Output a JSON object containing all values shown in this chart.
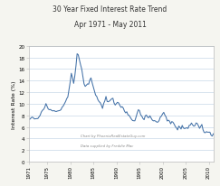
{
  "title_line1": "30 Year Fixed Interest Rate Trend",
  "title_line2": "Apr 1971 - May 2011",
  "ylabel": "Interest Rate (%)",
  "xlim_years": [
    1971,
    2011
  ],
  "ylim": [
    0,
    20
  ],
  "yticks": [
    0,
    2,
    4,
    6,
    8,
    10,
    12,
    14,
    16,
    18,
    20
  ],
  "xticks": [
    1971,
    1975,
    1980,
    1985,
    1990,
    1995,
    2000,
    2005,
    2010
  ],
  "line_color": "#4472a8",
  "background_color": "#f5f5f0",
  "plot_bg_color": "#ffffff",
  "grid_color": "#c8d8e8",
  "annotation1": "Chart by PhoenixRealEstateGuy.com",
  "annotation2": "Data supplied by Freddie Mac",
  "mortgage_rates": [
    [
      1971.25,
      7.33
    ],
    [
      1971.5,
      7.53
    ],
    [
      1971.75,
      7.7
    ],
    [
      1972.0,
      7.6
    ],
    [
      1972.25,
      7.38
    ],
    [
      1972.5,
      7.41
    ],
    [
      1972.75,
      7.44
    ],
    [
      1973.0,
      7.44
    ],
    [
      1973.25,
      7.73
    ],
    [
      1973.5,
      8.02
    ],
    [
      1973.75,
      8.57
    ],
    [
      1974.0,
      8.87
    ],
    [
      1974.25,
      9.04
    ],
    [
      1974.5,
      9.4
    ],
    [
      1974.75,
      10.03
    ],
    [
      1975.0,
      9.57
    ],
    [
      1975.25,
      9.1
    ],
    [
      1975.5,
      8.97
    ],
    [
      1975.75,
      9.01
    ],
    [
      1976.0,
      8.84
    ],
    [
      1976.25,
      8.76
    ],
    [
      1976.5,
      8.83
    ],
    [
      1976.75,
      8.7
    ],
    [
      1977.0,
      8.67
    ],
    [
      1977.25,
      8.75
    ],
    [
      1977.5,
      8.8
    ],
    [
      1977.75,
      8.84
    ],
    [
      1978.0,
      8.97
    ],
    [
      1978.25,
      9.41
    ],
    [
      1978.5,
      9.62
    ],
    [
      1978.75,
      9.99
    ],
    [
      1979.0,
      10.38
    ],
    [
      1979.25,
      10.88
    ],
    [
      1979.5,
      11.2
    ],
    [
      1979.75,
      12.5
    ],
    [
      1980.0,
      13.74
    ],
    [
      1980.25,
      15.26
    ],
    [
      1980.5,
      14.48
    ],
    [
      1980.75,
      13.52
    ],
    [
      1981.0,
      14.8
    ],
    [
      1981.25,
      16.52
    ],
    [
      1981.5,
      18.63
    ],
    [
      1981.75,
      18.45
    ],
    [
      1982.0,
      17.6
    ],
    [
      1982.25,
      16.72
    ],
    [
      1982.5,
      15.98
    ],
    [
      1982.75,
      14.7
    ],
    [
      1983.0,
      13.44
    ],
    [
      1983.25,
      13.0
    ],
    [
      1983.5,
      13.2
    ],
    [
      1983.75,
      13.43
    ],
    [
      1984.0,
      13.38
    ],
    [
      1984.25,
      14.1
    ],
    [
      1984.5,
      14.47
    ],
    [
      1984.75,
      13.64
    ],
    [
      1985.0,
      12.92
    ],
    [
      1985.25,
      12.22
    ],
    [
      1985.5,
      11.5
    ],
    [
      1985.75,
      11.26
    ],
    [
      1986.0,
      10.7
    ],
    [
      1986.25,
      10.37
    ],
    [
      1986.5,
      10.2
    ],
    [
      1986.75,
      9.77
    ],
    [
      1987.0,
      9.2
    ],
    [
      1987.25,
      10.05
    ],
    [
      1987.5,
      10.5
    ],
    [
      1987.75,
      11.26
    ],
    [
      1988.0,
      10.4
    ],
    [
      1988.25,
      10.35
    ],
    [
      1988.5,
      10.47
    ],
    [
      1988.75,
      10.67
    ],
    [
      1989.0,
      10.87
    ],
    [
      1989.25,
      10.95
    ],
    [
      1989.5,
      10.12
    ],
    [
      1989.75,
      9.78
    ],
    [
      1990.0,
      10.05
    ],
    [
      1990.25,
      10.25
    ],
    [
      1990.5,
      10.13
    ],
    [
      1990.75,
      9.72
    ],
    [
      1991.0,
      9.38
    ],
    [
      1991.25,
      9.5
    ],
    [
      1991.5,
      9.25
    ],
    [
      1991.75,
      8.73
    ],
    [
      1992.0,
      8.43
    ],
    [
      1992.25,
      8.62
    ],
    [
      1992.5,
      8.1
    ],
    [
      1992.75,
      8.0
    ],
    [
      1993.0,
      7.68
    ],
    [
      1993.25,
      7.35
    ],
    [
      1993.5,
      7.11
    ],
    [
      1993.75,
      7.07
    ],
    [
      1994.0,
      7.06
    ],
    [
      1994.25,
      7.68
    ],
    [
      1994.5,
      8.38
    ],
    [
      1994.75,
      8.97
    ],
    [
      1995.0,
      8.83
    ],
    [
      1995.25,
      8.11
    ],
    [
      1995.5,
      7.87
    ],
    [
      1995.75,
      7.47
    ],
    [
      1996.0,
      7.25
    ],
    [
      1996.25,
      7.93
    ],
    [
      1996.5,
      8.05
    ],
    [
      1996.75,
      7.68
    ],
    [
      1997.0,
      7.59
    ],
    [
      1997.25,
      7.93
    ],
    [
      1997.5,
      7.57
    ],
    [
      1997.75,
      7.21
    ],
    [
      1998.0,
      7.05
    ],
    [
      1998.25,
      7.1
    ],
    [
      1998.5,
      6.99
    ],
    [
      1998.75,
      6.83
    ],
    [
      1999.0,
      6.84
    ],
    [
      1999.25,
      7.1
    ],
    [
      1999.5,
      7.69
    ],
    [
      1999.75,
      7.87
    ],
    [
      2000.0,
      8.25
    ],
    [
      2000.25,
      8.52
    ],
    [
      2000.5,
      8.04
    ],
    [
      2000.75,
      7.73
    ],
    [
      2001.0,
      7.03
    ],
    [
      2001.25,
      7.17
    ],
    [
      2001.5,
      7.0
    ],
    [
      2001.75,
      6.54
    ],
    [
      2002.0,
      6.93
    ],
    [
      2002.25,
      6.81
    ],
    [
      2002.5,
      6.49
    ],
    [
      2002.75,
      6.08
    ],
    [
      2003.0,
      5.84
    ],
    [
      2003.25,
      5.48
    ],
    [
      2003.5,
      6.14
    ],
    [
      2003.75,
      5.95
    ],
    [
      2004.0,
      5.64
    ],
    [
      2004.25,
      6.27
    ],
    [
      2004.5,
      5.82
    ],
    [
      2004.75,
      5.71
    ],
    [
      2005.0,
      5.79
    ],
    [
      2005.25,
      5.86
    ],
    [
      2005.5,
      5.73
    ],
    [
      2005.75,
      6.26
    ],
    [
      2006.0,
      6.32
    ],
    [
      2006.25,
      6.68
    ],
    [
      2006.5,
      6.35
    ],
    [
      2006.75,
      6.14
    ],
    [
      2007.0,
      6.22
    ],
    [
      2007.25,
      6.69
    ],
    [
      2007.5,
      6.59
    ],
    [
      2007.75,
      6.21
    ],
    [
      2008.0,
      5.76
    ],
    [
      2008.25,
      6.09
    ],
    [
      2008.5,
      6.43
    ],
    [
      2008.75,
      5.53
    ],
    [
      2009.0,
      5.05
    ],
    [
      2009.25,
      5.01
    ],
    [
      2009.5,
      5.19
    ],
    [
      2009.75,
      5.09
    ],
    [
      2010.0,
      5.09
    ],
    [
      2010.25,
      5.1
    ],
    [
      2010.5,
      4.57
    ],
    [
      2010.75,
      4.42
    ],
    [
      2011.0,
      4.84
    ],
    [
      2011.25,
      4.64
    ]
  ]
}
